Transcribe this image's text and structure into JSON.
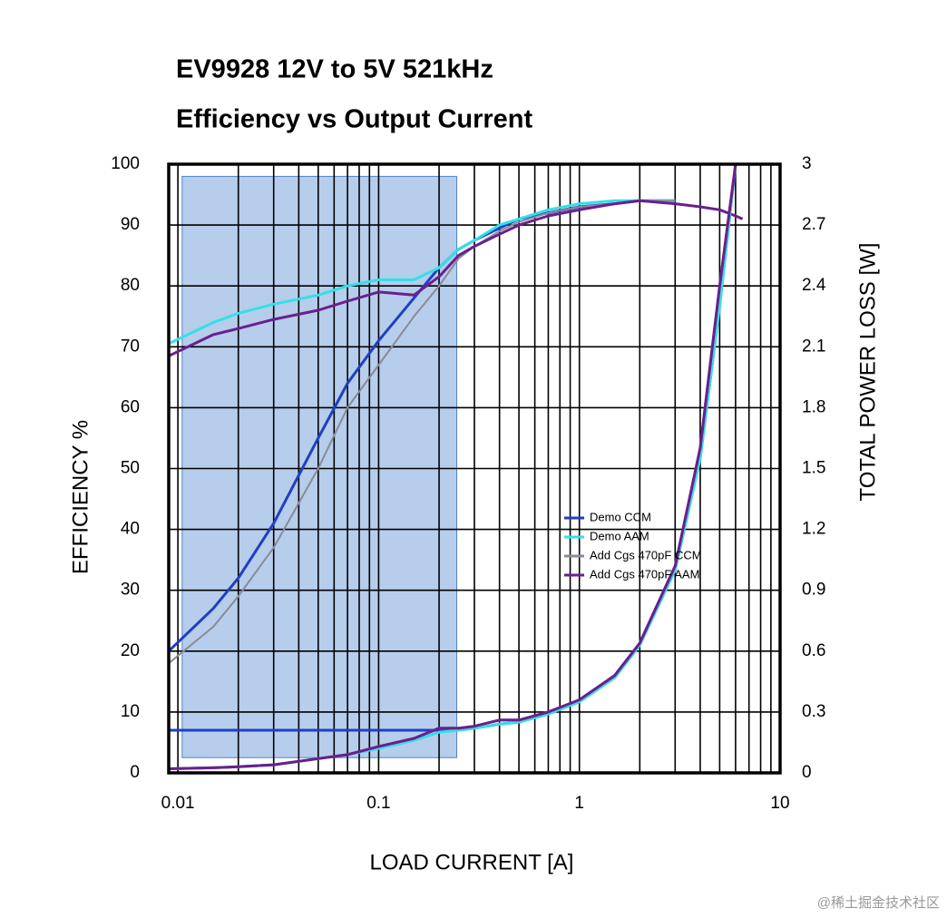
{
  "chart_data": {
    "type": "line",
    "title": "EV9928 12V to 5V 521kHz",
    "subtitle": "Efficiency vs Output Current",
    "x_label": "LOAD CURRENT [A]",
    "y_label": "EFFICIENCY %",
    "y2_label": "TOTAL POWER LOSS [W]",
    "watermark": "@稀土掘金技术社区",
    "x_scale": "log",
    "xlim": [
      0.009,
      10
    ],
    "xticks": [
      0.01,
      0.1,
      1,
      10
    ],
    "xgrid": [
      0.01,
      0.02,
      0.03,
      0.04,
      0.05,
      0.06,
      0.07,
      0.08,
      0.09,
      0.1,
      0.2,
      0.3,
      0.4,
      0.5,
      0.6,
      0.7,
      0.8,
      0.9,
      1,
      2,
      3,
      4,
      5,
      6,
      7,
      8,
      9
    ],
    "ylim": [
      0,
      100
    ],
    "yticks": [
      0,
      10,
      20,
      30,
      40,
      50,
      60,
      70,
      80,
      90,
      100
    ],
    "y2lim": [
      0,
      3
    ],
    "y2ticks": [
      0,
      0.3,
      0.6,
      0.9,
      1.2,
      1.5,
      1.8,
      2.1,
      2.4,
      2.7,
      3
    ],
    "grid": true,
    "legend": "right",
    "highlight": {
      "x": [
        0.0105,
        0.245
      ],
      "y": [
        2.5,
        98
      ]
    },
    "x": [
      0.009,
      0.015,
      0.02,
      0.03,
      0.05,
      0.07,
      0.1,
      0.15,
      0.2,
      0.25,
      0.3,
      0.4,
      0.5,
      0.7,
      1,
      1.5,
      2,
      3,
      4,
      5,
      6,
      6.5
    ],
    "series": [
      {
        "name": "Demo CCM",
        "color": "#1f3fc4",
        "values": [
          20,
          27,
          32,
          41,
          55,
          64,
          71,
          78,
          83,
          86,
          87.5,
          89.5,
          91,
          92,
          93,
          93.5,
          94,
          94,
          null,
          null,
          null,
          null
        ]
      },
      {
        "name": "Demo AAM",
        "color": "#33e0e8",
        "values": [
          70.5,
          74,
          75.5,
          77,
          78.5,
          80,
          81,
          81,
          83,
          86,
          87.5,
          90,
          91,
          92.5,
          93.5,
          94,
          94,
          94,
          null,
          null,
          null,
          null
        ]
      },
      {
        "name": "Add Cgs 470pF CCM",
        "color": "#8a8a9a",
        "values": [
          18,
          24,
          29,
          37,
          50,
          60,
          67,
          75,
          80,
          84.5,
          86.5,
          89,
          90.5,
          92,
          93,
          93.5,
          94,
          94,
          null,
          null,
          null,
          null
        ]
      },
      {
        "name": "Add Cgs 470pF AAM",
        "color": "#6a1f8f",
        "values": [
          68.5,
          72,
          73,
          74.5,
          76,
          77.5,
          79,
          78.5,
          81.5,
          85,
          86.5,
          88.5,
          90,
          91.5,
          92.5,
          93.5,
          94,
          93.5,
          93,
          92.5,
          91.5,
          91
        ]
      },
      {
        "color": "#1f3fc4",
        "axis": "y2",
        "values": [
          0.21,
          0.21,
          0.21,
          0.21,
          0.21,
          0.21,
          0.21,
          0.21,
          0.21,
          0.21,
          0.22,
          0.24,
          0.25,
          0.29,
          0.35,
          0.47,
          0.63,
          1.0,
          1.55,
          2.3,
          3.0,
          null
        ]
      },
      {
        "color": "#33e0e8",
        "axis": "y2",
        "values": [
          0.02,
          0.025,
          0.03,
          0.04,
          0.07,
          0.09,
          0.12,
          0.16,
          0.2,
          0.21,
          0.22,
          0.24,
          0.25,
          0.29,
          0.35,
          0.47,
          0.63,
          1.0,
          1.55,
          2.3,
          3.0,
          null
        ]
      },
      {
        "color": "#8a8a9a",
        "axis": "y2",
        "values": [
          0.02,
          0.025,
          0.03,
          0.04,
          0.07,
          0.09,
          0.13,
          0.17,
          0.22,
          0.22,
          0.23,
          0.26,
          0.26,
          0.3,
          0.36,
          0.48,
          0.64,
          1.02,
          1.6,
          2.4,
          3.0,
          null
        ]
      },
      {
        "color": "#6a1f8f",
        "axis": "y2",
        "values": [
          0.02,
          0.025,
          0.03,
          0.04,
          0.07,
          0.09,
          0.13,
          0.17,
          0.22,
          0.22,
          0.23,
          0.26,
          0.26,
          0.3,
          0.36,
          0.48,
          0.64,
          1.02,
          1.6,
          2.4,
          3.0,
          null
        ]
      }
    ]
  }
}
